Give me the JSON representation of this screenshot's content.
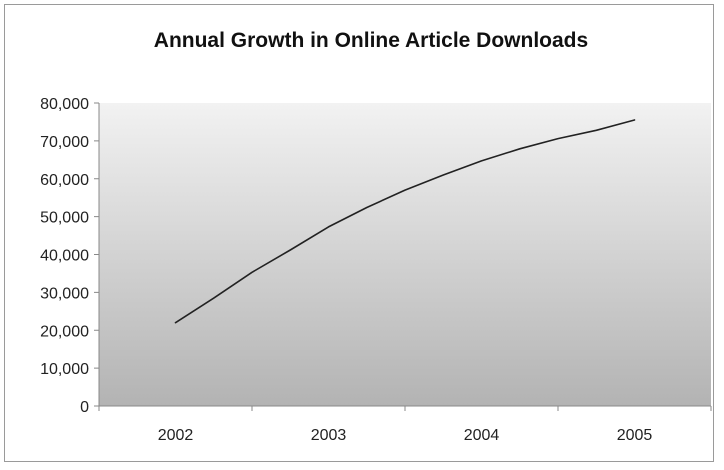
{
  "chart_data": {
    "type": "line",
    "title": "Annual Growth in Online Article Downloads",
    "xlabel": "",
    "ylabel": "",
    "categories": [
      "2002",
      "2003",
      "2004",
      "2005"
    ],
    "x": [
      2002.0,
      2002.25,
      2002.5,
      2002.75,
      2003.0,
      2003.25,
      2003.5,
      2003.75,
      2004.0,
      2004.25,
      2004.5,
      2004.75,
      2005.0
    ],
    "series": [
      {
        "name": "",
        "values": [
          22000,
          28500,
          35300,
          41200,
          47300,
          52400,
          57000,
          61000,
          64700,
          67900,
          70600,
          72800,
          75500
        ]
      }
    ],
    "ylim": [
      0,
      80000
    ],
    "yticks": [
      0,
      10000,
      20000,
      30000,
      40000,
      50000,
      60000,
      70000,
      80000
    ],
    "ytick_labels": [
      "0",
      "10,000",
      "20,000",
      "30,000",
      "40,000",
      "50,000",
      "60,000",
      "70,000",
      "80,000"
    ],
    "grid": false,
    "legend": "none",
    "colors": {
      "line": "#222222",
      "plot_gradient_top": "#f2f2f2",
      "plot_gradient_bottom": "#b3b3b3",
      "axis": "#888888"
    }
  }
}
